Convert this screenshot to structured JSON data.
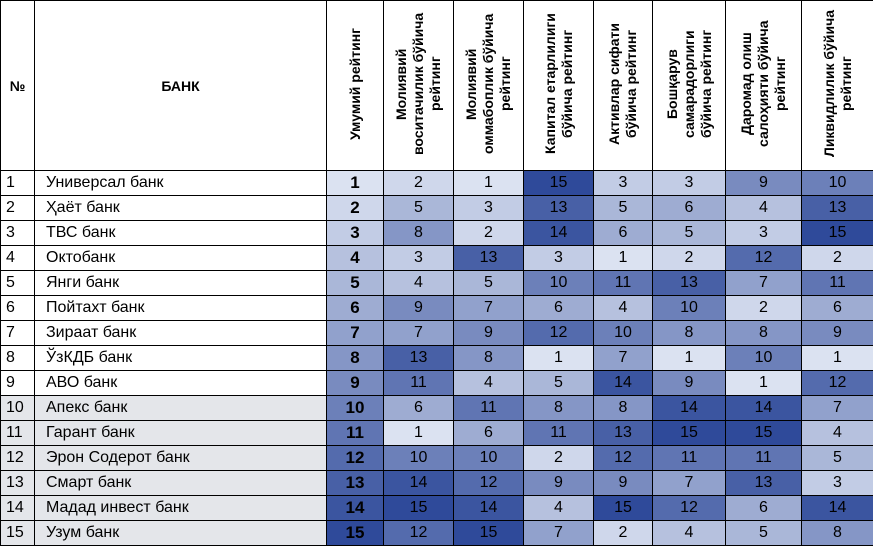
{
  "headers": {
    "num": "№",
    "bank": "БАНК",
    "overall": "Умумий рейтинг",
    "criteria": [
      "Молиявий воситачилик бўйича рейтинг",
      "Молиявий оммабоплик бўйича рейтинг",
      "Капитал етарлилиги бўйича рейтинг",
      "Активлар сифати бўйича рейтинг",
      "Бошқарув самарадорлиги бўйича рейтинг",
      "Даромад олиш салоҳияти бўйича рейтинг",
      "Ликвидлилик бўйича рейтинг"
    ]
  },
  "rows": [
    {
      "num": "1",
      "bank": "Универсал банк",
      "overall": "1",
      "values": [
        "2",
        "1",
        "15",
        "3",
        "3",
        "9",
        "10"
      ]
    },
    {
      "num": "2",
      "bank": "Ҳаёт банк",
      "overall": "2",
      "values": [
        "5",
        "3",
        "13",
        "5",
        "6",
        "4",
        "13"
      ]
    },
    {
      "num": "3",
      "bank": "ТВС банк",
      "overall": "3",
      "values": [
        "8",
        "2",
        "14",
        "6",
        "5",
        "3",
        "15"
      ]
    },
    {
      "num": "4",
      "bank": "Октобанк",
      "overall": "4",
      "values": [
        "3",
        "13",
        "3",
        "1",
        "2",
        "12",
        "2"
      ]
    },
    {
      "num": "5",
      "bank": "Янги банк",
      "overall": "5",
      "values": [
        "4",
        "5",
        "10",
        "11",
        "13",
        "7",
        "11"
      ]
    },
    {
      "num": "6",
      "bank": "Пойтахт банк",
      "overall": "6",
      "values": [
        "9",
        "7",
        "6",
        "4",
        "10",
        "2",
        "6"
      ]
    },
    {
      "num": "7",
      "bank": "Зираат банк",
      "overall": "7",
      "values": [
        "7",
        "9",
        "12",
        "10",
        "8",
        "8",
        "9"
      ]
    },
    {
      "num": "8",
      "bank": "ЎзКДБ банк",
      "overall": "8",
      "values": [
        "13",
        "8",
        "1",
        "7",
        "1",
        "10",
        "1"
      ]
    },
    {
      "num": "9",
      "bank": "АВО банк",
      "overall": "9",
      "values": [
        "11",
        "4",
        "5",
        "14",
        "9",
        "1",
        "12"
      ]
    },
    {
      "num": "10",
      "bank": "Апекс банк",
      "overall": "10",
      "values": [
        "6",
        "11",
        "8",
        "8",
        "14",
        "14",
        "7"
      ]
    },
    {
      "num": "11",
      "bank": "Гарант банк",
      "overall": "11",
      "values": [
        "1",
        "6",
        "11",
        "13",
        "15",
        "15",
        "4"
      ]
    },
    {
      "num": "12",
      "bank": "Эрон Содерот банк",
      "overall": "12",
      "values": [
        "10",
        "10",
        "2",
        "12",
        "11",
        "11",
        "5"
      ]
    },
    {
      "num": "13",
      "bank": "Смарт банк",
      "overall": "13",
      "values": [
        "14",
        "12",
        "9",
        "9",
        "7",
        "13",
        "3"
      ]
    },
    {
      "num": "14",
      "bank": "Мадад инвест банк",
      "overall": "14",
      "values": [
        "15",
        "14",
        "4",
        "15",
        "12",
        "6",
        "14"
      ]
    },
    {
      "num": "15",
      "bank": "Узум банк",
      "overall": "15",
      "values": [
        "12",
        "15",
        "7",
        "2",
        "4",
        "5",
        "8"
      ]
    }
  ],
  "colors": {
    "light": "#dbe2f1",
    "dark": "#2f4a9a",
    "light_text": "#000000",
    "shaded_row": "#e4e6ea"
  }
}
